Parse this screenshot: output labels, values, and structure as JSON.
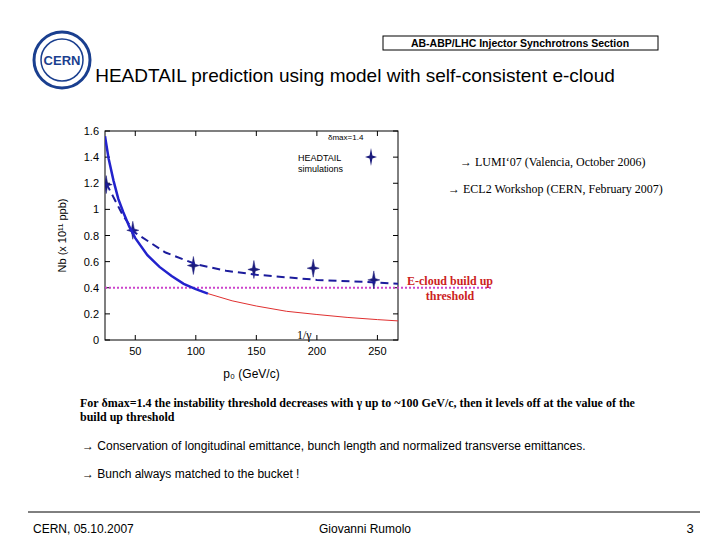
{
  "slide": {
    "logo": "CERN",
    "header": "AB-ABP/LHC Injector Synchrotrons Section",
    "title": "HEADTAIL prediction using model with  self-consistent e-cloud",
    "refs": [
      "→ LUMI‘07 (Valencia, October 2006)",
      "→ ECL2 Workshop (CERN, February 2007)"
    ],
    "paragraph": "For δmax=1.4 the instability threshold decreases with γ up to ~100 GeV/c, then it levels off at the value of the build up threshold",
    "bullets": [
      "→ Conservation of longitudinal emittance, bunch length and normalized transverse emittances.",
      "→ Bunch always matched to the bucket !"
    ],
    "footer": {
      "date": "CERN, 05.10.2007",
      "author": "Giovanni Rumolo",
      "page": "3"
    }
  },
  "chart_data": {
    "type": "scatter",
    "x_label": "p₀ (GeV/c)",
    "y_label": "Nb (x 10¹¹ ppb)",
    "xlim": [
      25,
      267
    ],
    "ylim": [
      0,
      1.6
    ],
    "xticks": [
      50,
      100,
      150,
      200,
      250
    ],
    "yticks": [
      0,
      0.2,
      0.4,
      0.6,
      0.8,
      1,
      1.2,
      1.4,
      1.6
    ],
    "grid": false,
    "legend": "upper right",
    "annotations": [
      {
        "text": "δmax=1.4"
      }
    ],
    "threshold": {
      "label": "E-cloud build up threshold",
      "value": 0.4,
      "color": "#cc44cc"
    },
    "series": [
      {
        "name": "HEADTAIL simulations",
        "type": "scatter",
        "marker": "star",
        "color": "#1c1c7c",
        "x": [
          26,
          48,
          98,
          148,
          197,
          247
        ],
        "values": [
          1.19,
          0.84,
          0.57,
          0.54,
          0.55,
          0.46
        ]
      },
      {
        "type": "line",
        "line_style": "dashed",
        "color": "#1c1c9c",
        "x": [
          26,
          40,
          50,
          75,
          100,
          125,
          150,
          200,
          250,
          267
        ],
        "values": [
          1.2,
          0.95,
          0.82,
          0.67,
          0.58,
          0.53,
          0.5,
          0.46,
          0.44,
          0.43
        ]
      },
      {
        "type": "line",
        "line_style": "solid",
        "color": "#2222cc",
        "x": [
          25,
          28,
          32,
          36,
          40,
          45,
          50,
          60,
          70,
          80,
          90,
          100,
          110
        ],
        "values": [
          1.56,
          1.39,
          1.22,
          1.08,
          0.98,
          0.87,
          0.78,
          0.65,
          0.56,
          0.49,
          0.43,
          0.39,
          0.355
        ]
      },
      {
        "name": "1/γ",
        "type": "line",
        "line_style": "solid",
        "color": "#e03030",
        "x": [
          110,
          130,
          150,
          175,
          200,
          225,
          250,
          267
        ],
        "values": [
          0.355,
          0.3,
          0.26,
          0.22,
          0.195,
          0.173,
          0.156,
          0.146
        ]
      }
    ]
  }
}
